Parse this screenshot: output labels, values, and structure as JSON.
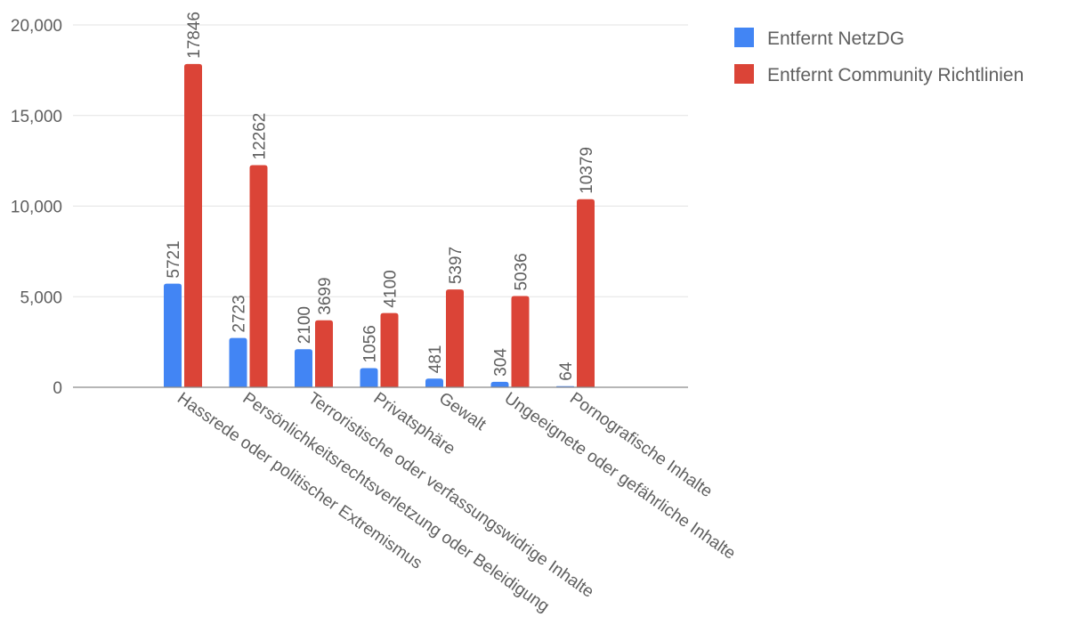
{
  "chart_data": {
    "type": "bar",
    "title": "",
    "xlabel": "",
    "ylabel": "",
    "ylim": [
      0,
      20000
    ],
    "y_ticks": [
      0,
      5000,
      10000,
      15000,
      20000
    ],
    "y_tick_labels": [
      "0",
      "5,000",
      "10,000",
      "15,000",
      "20,000"
    ],
    "grid": true,
    "legend_position": "top-right",
    "categories": [
      "Hassrede oder politischer Extremismus",
      "Persönlichkeitsrechtsverletzung oder Beleidigung",
      "Terroristische oder verfassungswidrige Inhalte",
      "Privatsphäre",
      "Gewalt",
      "Ungeeignete oder gefährliche Inhalte",
      "Pornografische Inhalte"
    ],
    "series": [
      {
        "name": "Entfernt NetzDG",
        "color": "#4285f4",
        "values": [
          5721,
          2723,
          2100,
          1056,
          481,
          304,
          64
        ]
      },
      {
        "name": "Entfernt Community Richtlinien",
        "color": "#db4437",
        "values": [
          17846,
          12262,
          3699,
          4100,
          5397,
          5036,
          10379
        ]
      }
    ]
  }
}
